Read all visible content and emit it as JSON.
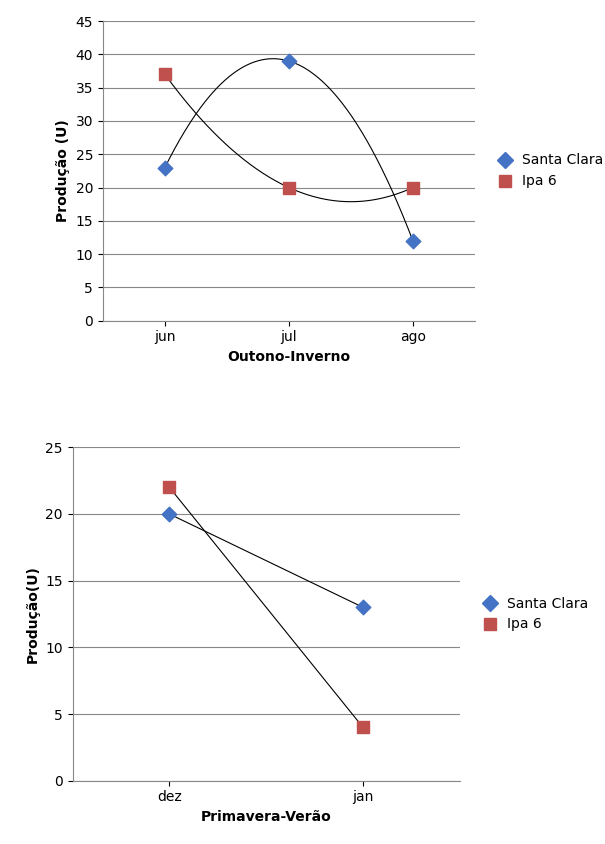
{
  "chart_data": [
    {
      "type": "scatter",
      "x_label": "Outono-Inverno",
      "y_label": "Produção (U)",
      "categories": [
        "jun",
        "jul",
        "ago"
      ],
      "series": [
        {
          "name": "Santa Clara",
          "color": "#4472c4",
          "marker": "diamond",
          "line_style": "smooth",
          "values": [
            23,
            39,
            12
          ]
        },
        {
          "name": "Ipa 6",
          "color": "#c0504d",
          "marker": "square",
          "line_style": "smooth",
          "values": [
            37,
            20,
            20
          ]
        }
      ],
      "ylim": [
        0,
        45
      ],
      "yticks": [
        0,
        5,
        10,
        15,
        20,
        25,
        30,
        35,
        40,
        45
      ],
      "grid": true,
      "legend": "right"
    },
    {
      "type": "scatter",
      "x_label": "Primavera-Verão",
      "y_label": "Produção(U)",
      "categories": [
        "dez",
        "jan"
      ],
      "series": [
        {
          "name": "Santa Clara",
          "color": "#4472c4",
          "marker": "diamond",
          "line_style": "solid",
          "values": [
            20,
            13
          ]
        },
        {
          "name": "Ipa 6",
          "color": "#c0504d",
          "marker": "square",
          "line_style": "solid",
          "values": [
            22,
            4
          ]
        }
      ],
      "ylim": [
        0,
        25
      ],
      "yticks": [
        0,
        5,
        10,
        15,
        20,
        25
      ],
      "grid": true,
      "legend": "right"
    }
  ]
}
